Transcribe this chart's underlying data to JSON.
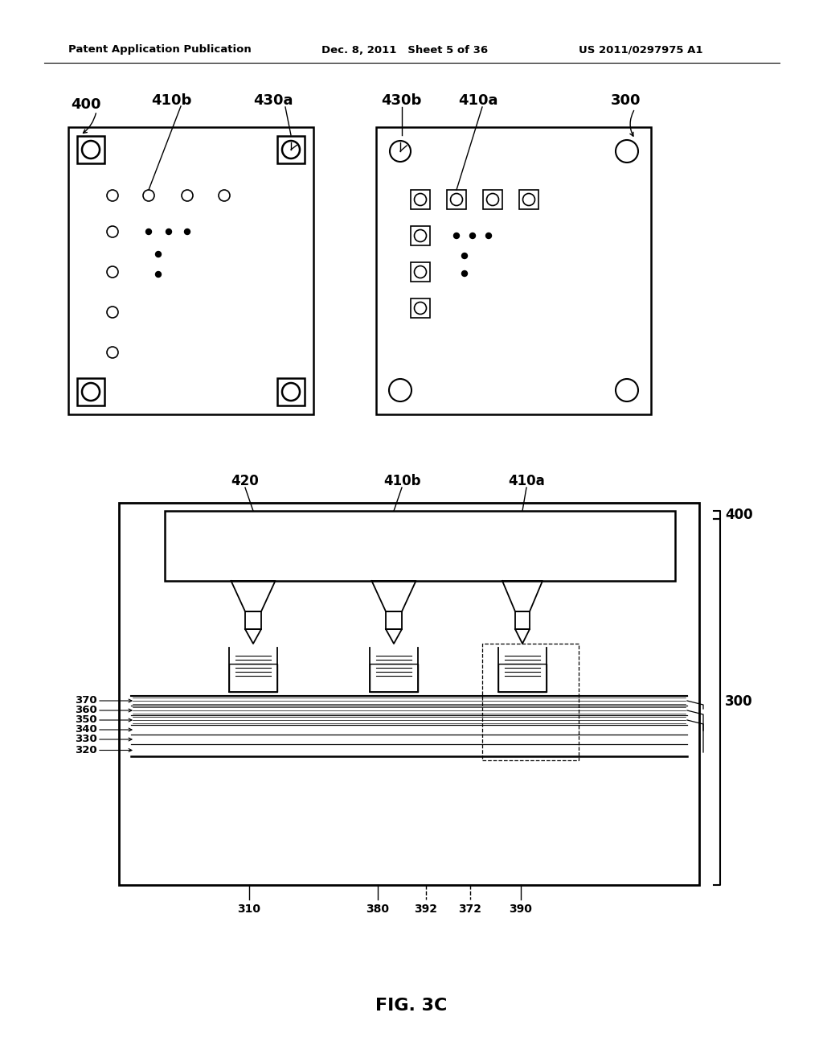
{
  "bg_color": "#ffffff",
  "header_left": "Patent Application Publication",
  "header_mid": "Dec. 8, 2011   Sheet 5 of 36",
  "header_right": "US 2011/0297975 A1",
  "fig_label": "FIG. 3C"
}
